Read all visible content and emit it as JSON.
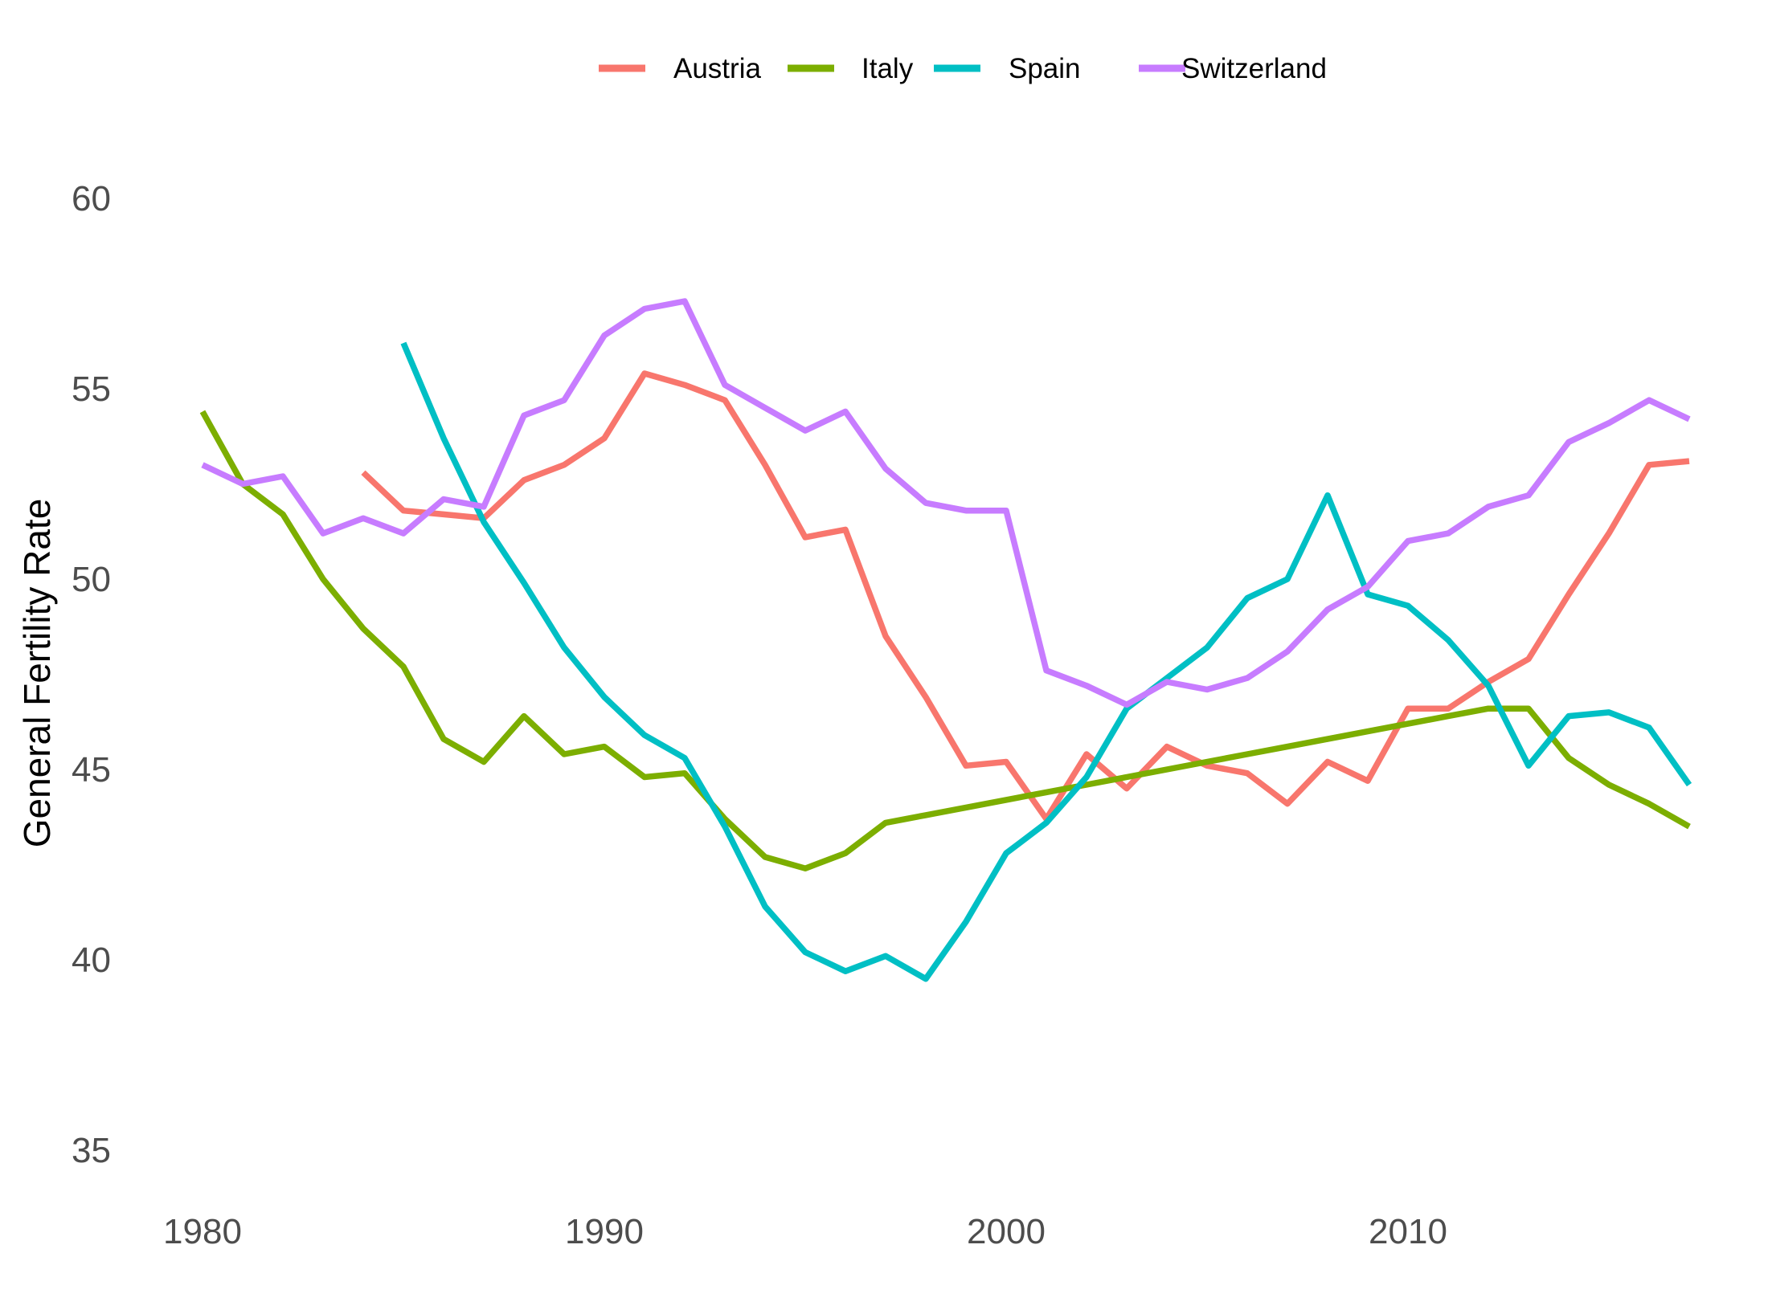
{
  "chart_data": {
    "type": "line",
    "title": "",
    "xlabel": "",
    "ylabel": "General Fertility Rate",
    "xlim": [
      1980,
      2017
    ],
    "ylim": [
      35,
      60
    ],
    "x_ticks": [
      1980,
      1990,
      2000,
      2010
    ],
    "y_ticks": [
      35,
      40,
      45,
      50,
      55,
      60
    ],
    "grid": false,
    "legend_position": "top",
    "series": [
      {
        "name": "Austria",
        "color": "#F8766D",
        "x": [
          1984,
          1985,
          1986,
          1987,
          1988,
          1989,
          1990,
          1991,
          1992,
          1993,
          1994,
          1995,
          1996,
          1997,
          1998,
          1999,
          2000,
          2001,
          2002,
          2003,
          2004,
          2005,
          2006,
          2007,
          2008,
          2009,
          2010,
          2011,
          2012,
          2013,
          2014,
          2015,
          2016,
          2017
        ],
        "y": [
          52.8,
          51.8,
          51.7,
          51.6,
          52.6,
          53.0,
          53.7,
          55.4,
          55.1,
          54.7,
          53.0,
          51.1,
          51.3,
          48.5,
          46.9,
          45.1,
          45.2,
          43.7,
          45.4,
          44.5,
          45.6,
          45.1,
          44.9,
          44.1,
          45.2,
          44.7,
          46.6,
          46.6,
          47.3,
          47.9,
          49.6,
          51.2,
          53.0,
          53.1
        ]
      },
      {
        "name": "Italy",
        "color": "#7CAE00",
        "x": [
          1980,
          1981,
          1982,
          1983,
          1984,
          1985,
          1986,
          1987,
          1988,
          1989,
          1990,
          1991,
          1992,
          1993,
          1994,
          1995,
          1996,
          1997,
          1998,
          1999,
          2000,
          2001,
          2002,
          2003,
          2004,
          2005,
          2006,
          2007,
          2008,
          2009,
          2010,
          2011,
          2012,
          2013,
          2014,
          2015,
          2016,
          2017
        ],
        "y": [
          54.4,
          52.5,
          51.7,
          50.0,
          48.7,
          47.7,
          45.8,
          45.2,
          46.4,
          45.4,
          45.6,
          44.8,
          44.9,
          43.7,
          42.7,
          42.4,
          42.8,
          43.6,
          43.8,
          44.0,
          44.2,
          44.4,
          44.6,
          44.8,
          45.0,
          45.2,
          45.4,
          45.6,
          45.8,
          46.0,
          46.2,
          46.4,
          46.6,
          46.6,
          45.3,
          44.6,
          44.1,
          43.5
        ]
      },
      {
        "name": "Spain",
        "color": "#00BFC4",
        "x": [
          1985,
          1986,
          1987,
          1988,
          1989,
          1990,
          1991,
          1992,
          1993,
          1994,
          1995,
          1996,
          1997,
          1998,
          1999,
          2000,
          2001,
          2002,
          2003,
          2004,
          2005,
          2006,
          2007,
          2008,
          2009,
          2010,
          2011,
          2012,
          2013,
          2014,
          2015,
          2016,
          2017
        ],
        "y": [
          56.2,
          53.7,
          51.5,
          49.9,
          48.2,
          46.9,
          45.9,
          45.3,
          43.5,
          41.4,
          40.2,
          39.7,
          40.1,
          39.5,
          41.0,
          42.8,
          43.6,
          44.8,
          46.6,
          47.4,
          48.2,
          49.5,
          50.0,
          52.2,
          49.6,
          49.3,
          48.4,
          47.2,
          45.1,
          46.4,
          46.5,
          46.1,
          44.6
        ]
      },
      {
        "name": "Switzerland",
        "color": "#C77CFF",
        "x": [
          1980,
          1981,
          1982,
          1983,
          1984,
          1985,
          1986,
          1987,
          1988,
          1989,
          1990,
          1991,
          1992,
          1993,
          1994,
          1995,
          1996,
          1997,
          1998,
          1999,
          2000,
          2001,
          2002,
          2003,
          2004,
          2005,
          2006,
          2007,
          2008,
          2009,
          2010,
          2011,
          2012,
          2013,
          2014,
          2015,
          2016,
          2017
        ],
        "y": [
          53.0,
          52.5,
          52.7,
          51.2,
          51.6,
          51.2,
          52.1,
          51.9,
          54.3,
          54.7,
          56.4,
          57.1,
          57.3,
          55.1,
          54.5,
          53.9,
          54.4,
          52.9,
          52.0,
          51.8,
          51.8,
          47.6,
          47.2,
          46.7,
          47.3,
          47.1,
          47.4,
          48.1,
          49.2,
          49.8,
          51.0,
          51.2,
          51.9,
          52.2,
          53.6,
          54.1,
          54.7,
          54.2
        ]
      }
    ]
  }
}
